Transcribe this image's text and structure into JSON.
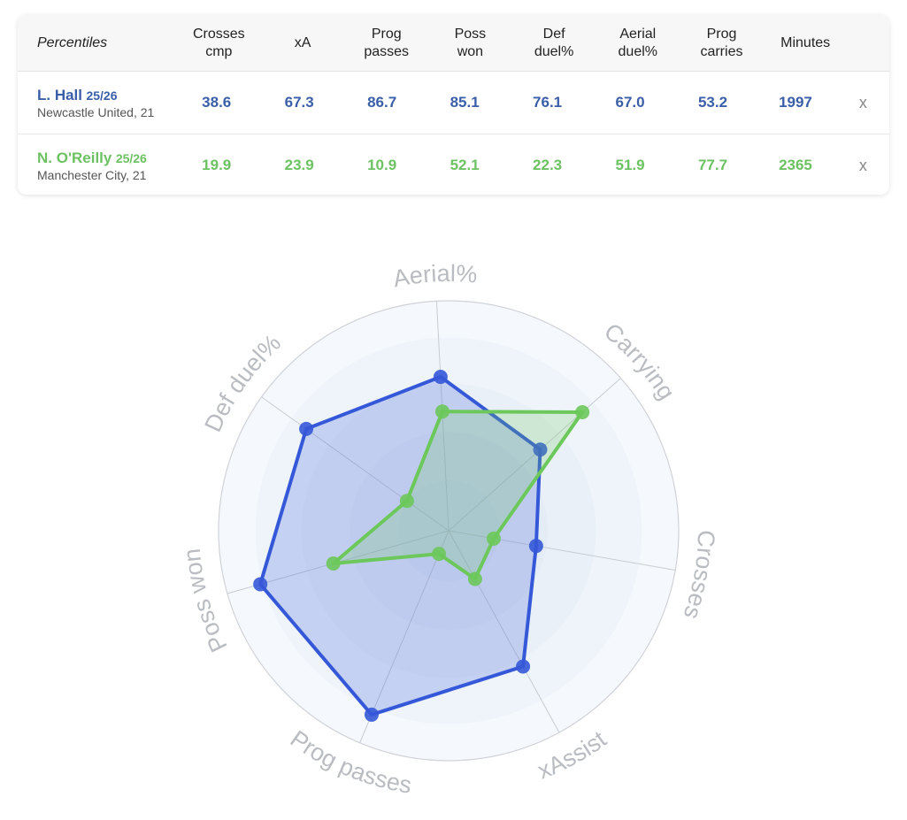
{
  "table": {
    "title": "Percentiles",
    "columns": [
      "Crosses\ncmp",
      "xA",
      "Prog\npasses",
      "Poss\nwon",
      "Def\nduel%",
      "Aerial\nduel%",
      "Prog\ncarries",
      "Minutes"
    ],
    "remove_label": "x",
    "players": [
      {
        "name": "L. Hall",
        "season": "25/26",
        "club": "Newcastle United, 21",
        "color": "#3a5fa8",
        "values": [
          "38.6",
          "67.3",
          "86.7",
          "85.1",
          "76.1",
          "67.0",
          "53.2",
          "1997"
        ]
      },
      {
        "name": "N. O'Reilly",
        "season": "25/26",
        "club": "Manchester City, 21",
        "color": "#6cc262",
        "values": [
          "19.9",
          "23.9",
          "10.9",
          "52.1",
          "22.3",
          "51.9",
          "77.7",
          "2365"
        ]
      }
    ]
  },
  "chart_data": {
    "type": "radar",
    "axes": [
      "Aerial%",
      "Carrying",
      "Crosses",
      "xAssist",
      "Prog passes",
      "Poss won",
      "Def duel%"
    ],
    "range": [
      0,
      100
    ],
    "series": [
      {
        "name": "L. Hall",
        "color": "#3558d8",
        "values": [
          67.0,
          53.2,
          38.6,
          67.3,
          86.7,
          85.1,
          76.1
        ]
      },
      {
        "name": "N. O'Reilly",
        "color": "#6cc85a",
        "values": [
          51.9,
          77.7,
          19.9,
          23.9,
          10.9,
          52.1,
          22.3
        ]
      }
    ]
  }
}
